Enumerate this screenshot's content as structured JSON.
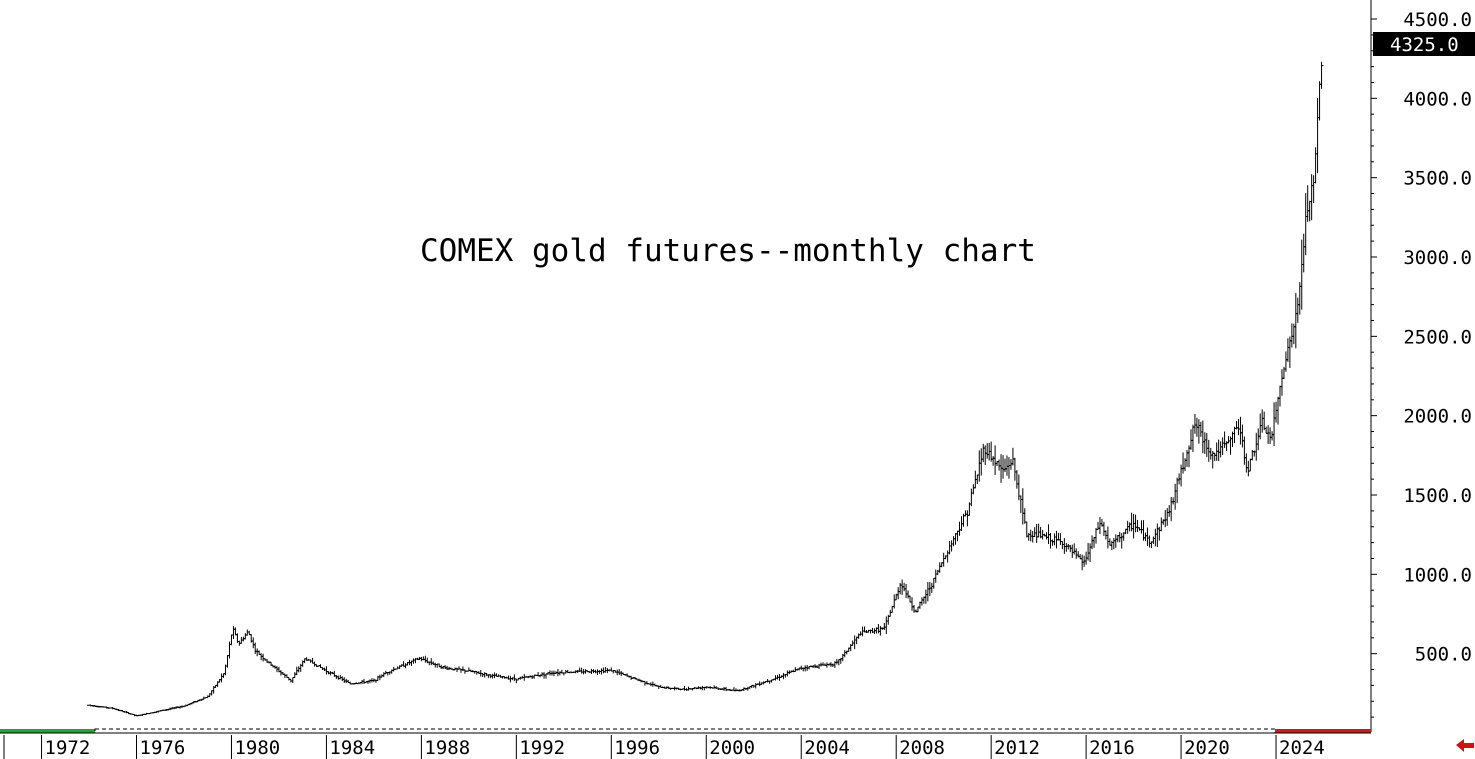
{
  "chart_data": {
    "type": "bar",
    "subtype": "ohlc-monthly",
    "title": "COMEX gold futures--monthly chart",
    "xlabel": "",
    "ylabel": "",
    "ylim": [
      0,
      4500
    ],
    "xlim": [
      1970.25,
      2028
    ],
    "grid": false,
    "y_ticks": [
      "4500.0",
      "4000.0",
      "3500.0",
      "3000.0",
      "2500.0",
      "2000.0",
      "1500.0",
      "1000.0",
      "500.0"
    ],
    "x_ticks": [
      "1972",
      "1976",
      "1980",
      "1984",
      "1988",
      "1992",
      "1996",
      "2000",
      "2004",
      "2008",
      "2012",
      "2016",
      "2020",
      "2024"
    ],
    "last_price": "4325.0",
    "series": [
      {
        "points": [
          {
            "x": 1974.0,
            "y": 175
          },
          {
            "x": 1975.0,
            "y": 155
          },
          {
            "x": 1976.0,
            "y": 108
          },
          {
            "x": 1977.0,
            "y": 140
          },
          {
            "x": 1978.0,
            "y": 170
          },
          {
            "x": 1979.0,
            "y": 230
          },
          {
            "x": 1979.7,
            "y": 380
          },
          {
            "x": 1980.05,
            "y": 660
          },
          {
            "x": 1980.3,
            "y": 560
          },
          {
            "x": 1980.7,
            "y": 640
          },
          {
            "x": 1981.0,
            "y": 520
          },
          {
            "x": 1981.5,
            "y": 450
          },
          {
            "x": 1982.5,
            "y": 330
          },
          {
            "x": 1983.1,
            "y": 470
          },
          {
            "x": 1984.0,
            "y": 390
          },
          {
            "x": 1985.0,
            "y": 310
          },
          {
            "x": 1986.0,
            "y": 330
          },
          {
            "x": 1986.5,
            "y": 380
          },
          {
            "x": 1987.9,
            "y": 470
          },
          {
            "x": 1989.0,
            "y": 410
          },
          {
            "x": 1990.0,
            "y": 390
          },
          {
            "x": 1991.0,
            "y": 360
          },
          {
            "x": 1992.0,
            "y": 340
          },
          {
            "x": 1993.5,
            "y": 380
          },
          {
            "x": 1996.0,
            "y": 395
          },
          {
            "x": 1997.0,
            "y": 340
          },
          {
            "x": 1998.0,
            "y": 290
          },
          {
            "x": 1999.0,
            "y": 275
          },
          {
            "x": 2000.0,
            "y": 290
          },
          {
            "x": 2001.3,
            "y": 265
          },
          {
            "x": 2002.0,
            "y": 300
          },
          {
            "x": 2003.0,
            "y": 350
          },
          {
            "x": 2004.0,
            "y": 410
          },
          {
            "x": 2005.0,
            "y": 430
          },
          {
            "x": 2005.5,
            "y": 440
          },
          {
            "x": 2006.5,
            "y": 630
          },
          {
            "x": 2007.5,
            "y": 660
          },
          {
            "x": 2008.2,
            "y": 950
          },
          {
            "x": 2008.8,
            "y": 760
          },
          {
            "x": 2009.5,
            "y": 940
          },
          {
            "x": 2010.0,
            "y": 1100
          },
          {
            "x": 2011.0,
            "y": 1400
          },
          {
            "x": 2011.7,
            "y": 1800
          },
          {
            "x": 2012.5,
            "y": 1650
          },
          {
            "x": 2012.9,
            "y": 1720
          },
          {
            "x": 2013.5,
            "y": 1250
          },
          {
            "x": 2014.0,
            "y": 1250
          },
          {
            "x": 2015.0,
            "y": 1200
          },
          {
            "x": 2015.9,
            "y": 1070
          },
          {
            "x": 2016.6,
            "y": 1330
          },
          {
            "x": 2017.0,
            "y": 1180
          },
          {
            "x": 2018.0,
            "y": 1320
          },
          {
            "x": 2018.7,
            "y": 1200
          },
          {
            "x": 2019.5,
            "y": 1400
          },
          {
            "x": 2020.6,
            "y": 1950
          },
          {
            "x": 2021.3,
            "y": 1750
          },
          {
            "x": 2022.0,
            "y": 1830
          },
          {
            "x": 2022.4,
            "y": 1950
          },
          {
            "x": 2022.8,
            "y": 1650
          },
          {
            "x": 2023.4,
            "y": 1950
          },
          {
            "x": 2023.8,
            "y": 1850
          },
          {
            "x": 2024.3,
            "y": 2300
          },
          {
            "x": 2024.9,
            "y": 2650
          },
          {
            "x": 2025.3,
            "y": 3300
          },
          {
            "x": 2025.6,
            "y": 3450
          },
          {
            "x": 2025.8,
            "y": 4000
          },
          {
            "x": 2025.95,
            "y": 4325
          }
        ]
      }
    ],
    "colors": {
      "bars": "#000000",
      "last_price_box": "#000000",
      "bottom_band_left": "#2e9e3a",
      "bottom_band_right": "#c41d1d",
      "arrow": "#d01010"
    }
  }
}
